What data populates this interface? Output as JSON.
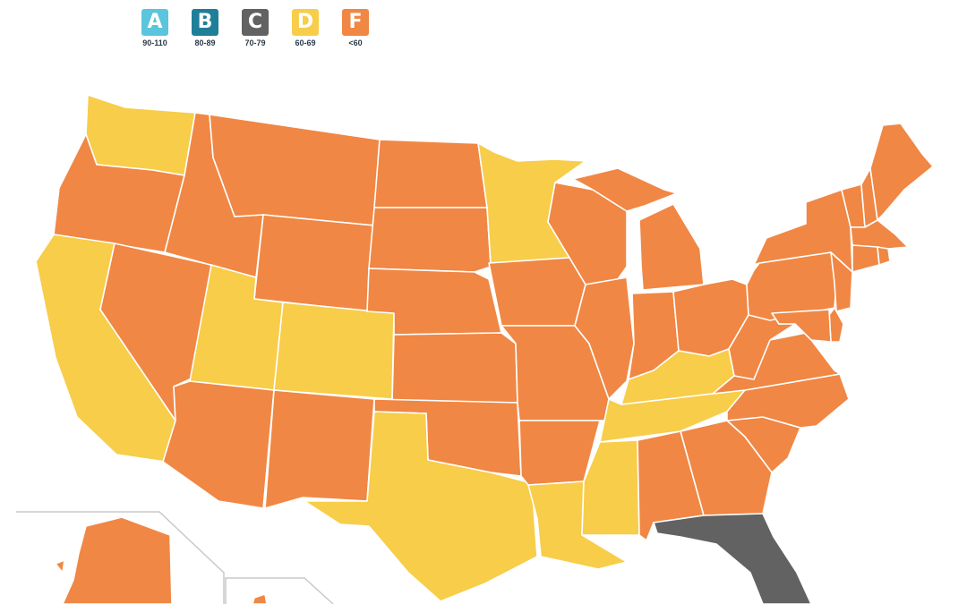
{
  "legend": [
    {
      "grade": "A",
      "range": "90-110",
      "color": "#5bc5dd"
    },
    {
      "grade": "B",
      "range": "80-89",
      "color": "#1f7f98"
    },
    {
      "grade": "C",
      "range": "70-79",
      "color": "#626262"
    },
    {
      "grade": "D",
      "range": "60-69",
      "color": "#f7cd4a"
    },
    {
      "grade": "F",
      "range": "<60",
      "color": "#f08744"
    }
  ],
  "state_grades": {
    "WA": "D",
    "OR": "F",
    "CA": "D",
    "NV": "F",
    "ID": "F",
    "MT": "F",
    "WY": "F",
    "UT": "D",
    "CO": "D",
    "AZ": "F",
    "NM": "F",
    "ND": "F",
    "SD": "F",
    "NE": "F",
    "KS": "F",
    "OK": "F",
    "TX": "D",
    "MN": "D",
    "IA": "F",
    "MO": "F",
    "AR": "F",
    "LA": "D",
    "WI": "F",
    "IL": "F",
    "MI": "F",
    "IN": "F",
    "OH": "F",
    "KY": "D",
    "TN": "D",
    "MS": "D",
    "AL": "F",
    "GA": "F",
    "FL": "C",
    "SC": "F",
    "NC": "F",
    "VA": "F",
    "WV": "F",
    "PA": "F",
    "NY": "F",
    "VT": "F",
    "NH": "F",
    "ME": "F",
    "MA": "F",
    "CT": "F",
    "RI": "F",
    "NJ": "F",
    "DE": "F",
    "MD": "F",
    "AK": "F",
    "HI": "F"
  }
}
